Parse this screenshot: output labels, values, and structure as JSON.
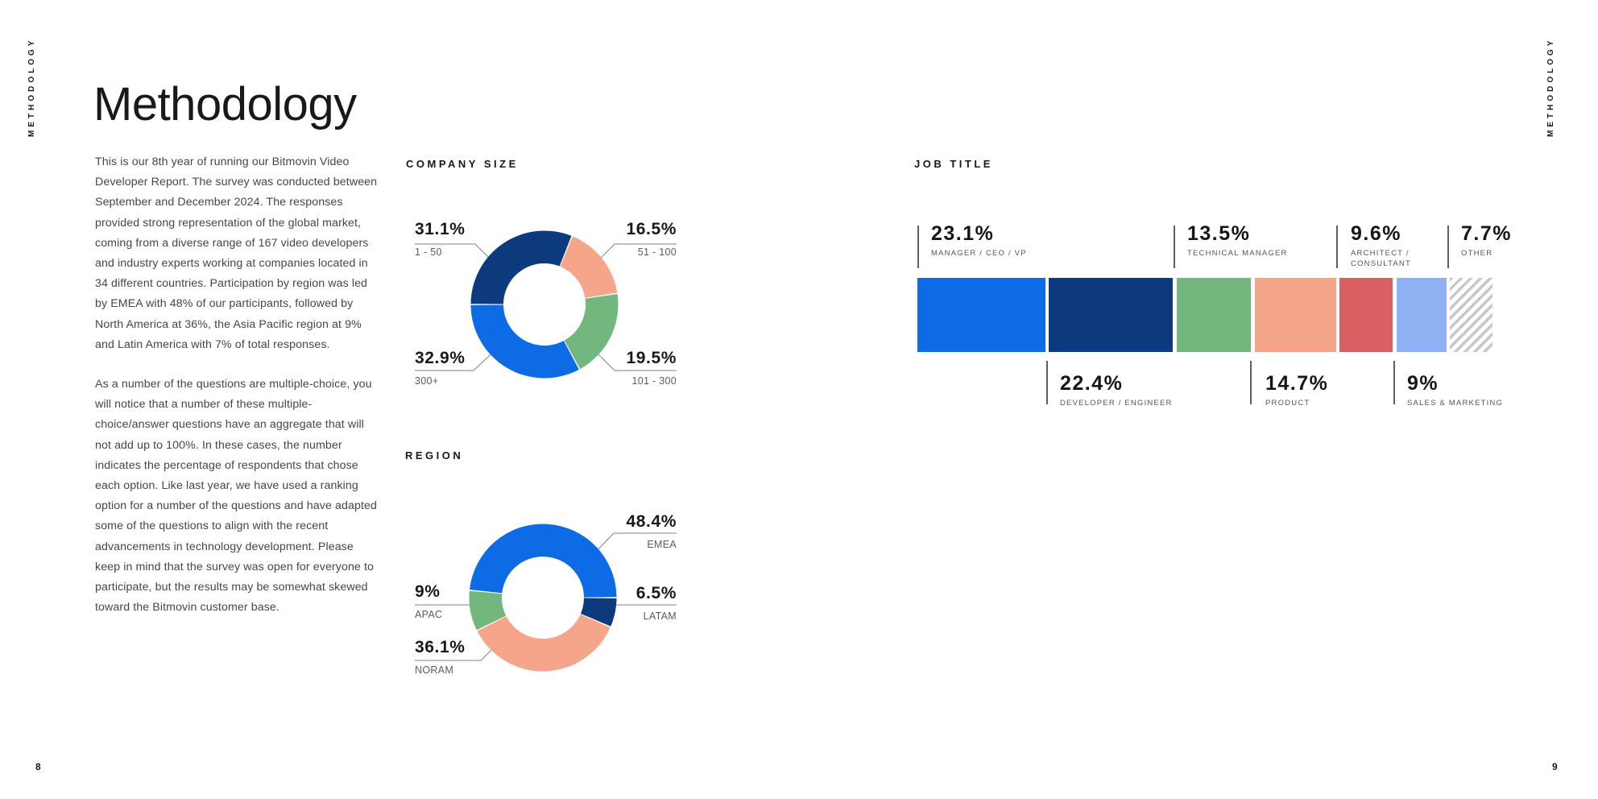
{
  "page": {
    "edge_label": "METHODOLOGY",
    "title": "Methodology",
    "left_page_number": "8",
    "right_page_number": "9",
    "paragraphs": [
      "This is our 8th year of running our Bitmovin Video Developer Report. The survey was conducted between September and December 2024. The responses provided strong representation of the global market, coming from a diverse range of 167 video developers and industry experts working at companies located in 34 different countries. Participation by region was led by EMEA with 48% of our participants, followed by North America at 36%, the Asia Pacific region at 9% and Latin America with 7% of total responses.",
      "As a number of the questions are multiple-choice, you will notice that a number of these multiple-choice/answer questions have an aggregate that will not add up to 100%. In these cases, the number indicates the percentage of respondents that chose each option. Like last year, we have used a ranking option for a number of the questions and have adapted some of the questions to align with the recent advancements in technology development. Please keep in mind that the survey was open for everyone to participate, but the results may be somewhat skewed toward the Bitmovin customer base."
    ]
  },
  "palette": {
    "bright_blue": "#0d6ce5",
    "navy": "#0c3a7d",
    "salmon": "#f4a58a",
    "green": "#72b87e",
    "red": "#d95f62",
    "light_blue": "#8fb1f3",
    "hatch_gray": "#c7c7ca",
    "text_dark": "#17191d",
    "caption_gray": "#565c63"
  },
  "chart_data": [
    {
      "type": "pie",
      "variant": "donut",
      "title": "COMPANY SIZE",
      "start_angle_deg": 270,
      "total": 100,
      "slices": [
        {
          "label": "1 - 50",
          "value": 31.1,
          "display": "31.1%",
          "color": "#0c3a7d"
        },
        {
          "label": "51 - 100",
          "value": 16.5,
          "display": "16.5%",
          "color": "#f4a58a"
        },
        {
          "label": "101 - 300",
          "value": 19.5,
          "display": "19.5%",
          "color": "#72b87e"
        },
        {
          "label": "300+",
          "value": 32.9,
          "display": "32.9%",
          "color": "#0d6ce5"
        }
      ]
    },
    {
      "type": "pie",
      "variant": "donut",
      "title": "REGION",
      "start_angle_deg": 275.8,
      "total": 100,
      "slices": [
        {
          "label": "EMEA",
          "value": 48.4,
          "display": "48.4%",
          "color": "#0d6ce5"
        },
        {
          "label": "LATAM",
          "value": 6.5,
          "display": "6.5%",
          "color": "#0c3a7d"
        },
        {
          "label": "NORAM",
          "value": 36.1,
          "display": "36.1%",
          "color": "#f4a58a"
        },
        {
          "label": "APAC",
          "value": 9.0,
          "display": "9%",
          "color": "#72b87e"
        }
      ]
    },
    {
      "type": "bar",
      "variant": "horizontal-stacked",
      "title": "JOB TITLE",
      "total": 100,
      "segments": [
        {
          "label": "MANAGER / CEO / VP",
          "value": 23.1,
          "display": "23.1%",
          "color": "#0d6ce5",
          "label_position": "above"
        },
        {
          "label": "DEVELOPER / ENGINEER",
          "value": 22.4,
          "display": "22.4%",
          "color": "#0c3a7d",
          "label_position": "below"
        },
        {
          "label": "TECHNICAL MANAGER",
          "value": 13.5,
          "display": "13.5%",
          "color": "#72b87e",
          "label_position": "above"
        },
        {
          "label": "PRODUCT",
          "value": 14.7,
          "display": "14.7%",
          "color": "#f4a58a",
          "label_position": "below"
        },
        {
          "label": "ARCHITECT / CONSULTANT",
          "value": 9.6,
          "display": "9.6%",
          "color": "#d95f62",
          "label_position": "above",
          "caption_lines": [
            "ARCHITECT /",
            "CONSULTANT"
          ]
        },
        {
          "label": "SALES & MARKETING",
          "value": 9.0,
          "display": "9%",
          "color": "#8fb1f3",
          "label_position": "below"
        },
        {
          "label": "OTHER",
          "value": 7.7,
          "display": "7.7%",
          "color": null,
          "pattern": "diagonal-hatch",
          "label_position": "above"
        }
      ]
    }
  ]
}
